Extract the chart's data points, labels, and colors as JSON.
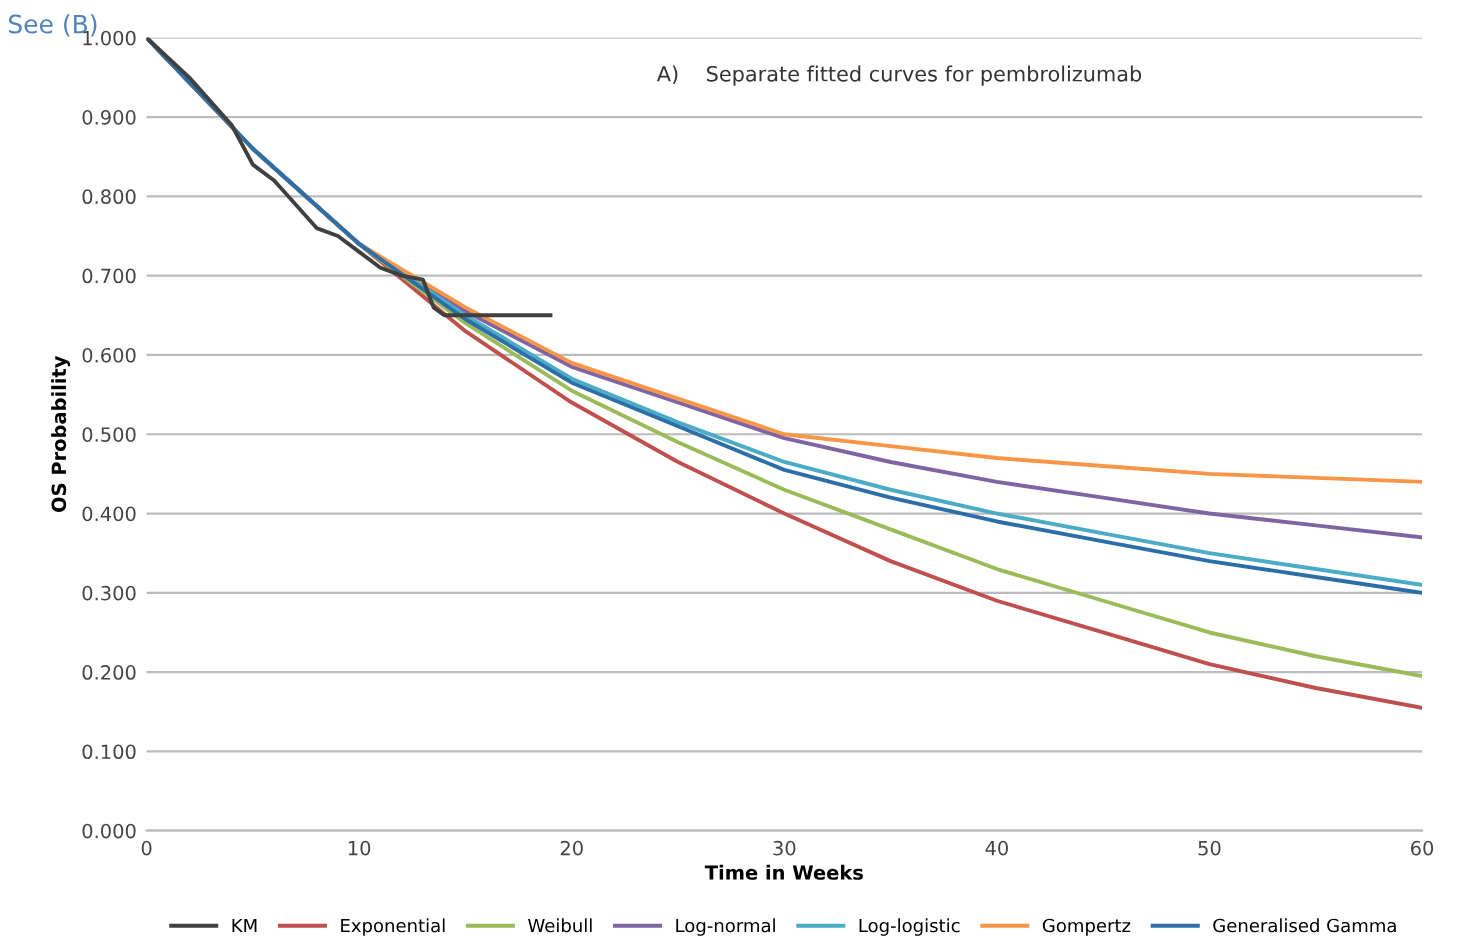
{
  "chart_data": {
    "type": "line",
    "title": "A)    Separate fitted curves for pembrolizumab",
    "xlabel": "Time in Weeks",
    "ylabel": "OS Probability",
    "annotations": [
      "See (B)"
    ],
    "xlim": [
      0,
      60
    ],
    "xticks": [
      0,
      10,
      20,
      30,
      40,
      50,
      60
    ],
    "ylim": [
      0,
      1
    ],
    "yticks": [
      {
        "value": 0,
        "label": "0.000"
      },
      {
        "value": 0.1,
        "label": "0.100"
      },
      {
        "value": 0.2,
        "label": "0.200"
      },
      {
        "value": 0.3,
        "label": "0.300"
      },
      {
        "value": 0.4,
        "label": "0.400"
      },
      {
        "value": 0.5,
        "label": "0.500"
      },
      {
        "value": 0.6,
        "label": "0.600"
      },
      {
        "value": 0.7,
        "label": "0.700"
      },
      {
        "value": 0.8,
        "label": "0.800"
      },
      {
        "value": 0.9,
        "label": "0.900"
      },
      {
        "value": 1,
        "label": "1.000"
      }
    ],
    "grid": "y",
    "legend": "bottom",
    "marker": "none",
    "line_style": "solid",
    "series": [
      {
        "name": "KM",
        "color": "#404040",
        "x": [
          0,
          2,
          4,
          5,
          6,
          7,
          8,
          9,
          10,
          11,
          12,
          13,
          13.5,
          14,
          19
        ],
        "values": [
          1.0,
          0.95,
          0.89,
          0.84,
          0.82,
          0.79,
          0.76,
          0.75,
          0.73,
          0.71,
          0.7,
          0.695,
          0.66,
          0.65,
          0.65
        ]
      },
      {
        "name": "Exponential",
        "color": "#c0504d",
        "x": [
          0,
          5,
          10,
          15,
          20,
          25,
          30,
          35,
          40,
          45,
          50,
          55,
          60
        ],
        "values": [
          1.0,
          0.86,
          0.74,
          0.63,
          0.54,
          0.465,
          0.4,
          0.34,
          0.29,
          0.25,
          0.21,
          0.18,
          0.155
        ]
      },
      {
        "name": "Weibull",
        "color": "#9bbb59",
        "x": [
          0,
          5,
          10,
          15,
          20,
          25,
          30,
          35,
          40,
          45,
          50,
          55,
          60
        ],
        "values": [
          1.0,
          0.86,
          0.74,
          0.64,
          0.555,
          0.49,
          0.43,
          0.38,
          0.33,
          0.29,
          0.25,
          0.22,
          0.195
        ]
      },
      {
        "name": "Log-normal",
        "color": "#8064a2",
        "x": [
          0,
          5,
          10,
          15,
          20,
          25,
          30,
          35,
          40,
          45,
          50,
          55,
          60
        ],
        "values": [
          1.0,
          0.86,
          0.74,
          0.655,
          0.585,
          0.54,
          0.495,
          0.465,
          0.44,
          0.42,
          0.4,
          0.385,
          0.37
        ]
      },
      {
        "name": "Log-logistic",
        "color": "#4bacc6",
        "x": [
          0,
          5,
          10,
          15,
          20,
          25,
          30,
          35,
          40,
          45,
          50,
          55,
          60
        ],
        "values": [
          1.0,
          0.86,
          0.74,
          0.65,
          0.57,
          0.515,
          0.465,
          0.43,
          0.4,
          0.375,
          0.35,
          0.33,
          0.31
        ]
      },
      {
        "name": "Gompertz",
        "color": "#f79646",
        "x": [
          0,
          5,
          10,
          15,
          20,
          25,
          30,
          35,
          40,
          45,
          50,
          55,
          60
        ],
        "values": [
          1.0,
          0.86,
          0.74,
          0.66,
          0.59,
          0.545,
          0.5,
          0.485,
          0.47,
          0.46,
          0.45,
          0.445,
          0.44
        ]
      },
      {
        "name": "Generalised Gamma",
        "color": "#2c6fa8",
        "x": [
          0,
          5,
          10,
          15,
          20,
          25,
          30,
          35,
          40,
          45,
          50,
          55,
          60
        ],
        "values": [
          1.0,
          0.86,
          0.74,
          0.645,
          0.565,
          0.51,
          0.455,
          0.42,
          0.39,
          0.365,
          0.34,
          0.32,
          0.3
        ]
      }
    ]
  }
}
